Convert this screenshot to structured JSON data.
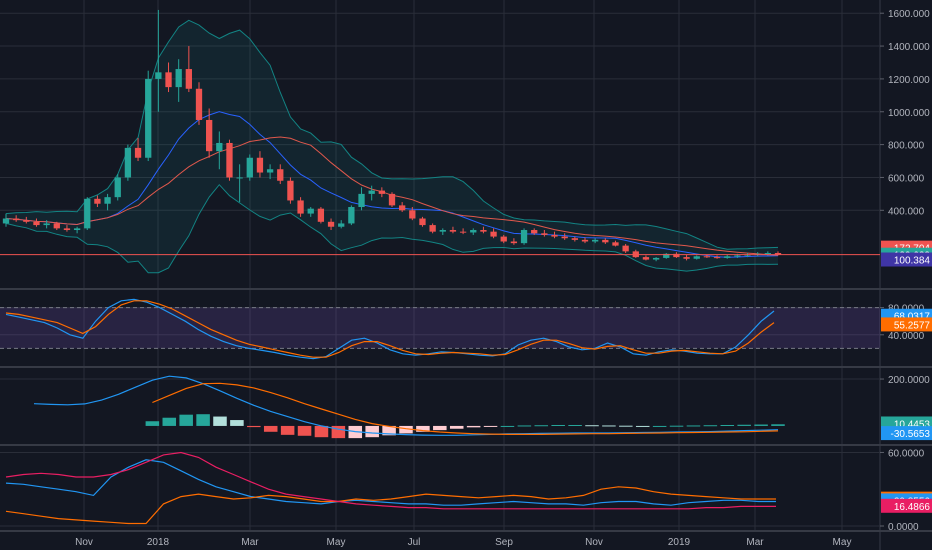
{
  "colors": {
    "background": "#131722",
    "grid": "#2a2e39",
    "axis_text": "#b2b5be",
    "candle_up": "#26a69a",
    "candle_down": "#ef5350",
    "price_line": "#ef5350",
    "bb_line": "#138484",
    "bb_fill": "#13848422",
    "ma_fast": "#2962ff",
    "ma_slow": "#e0584c",
    "stoch_band": "#7e57c233",
    "stoch_k": "#2196f3",
    "stoch_d": "#ff6d00",
    "macd_line": "#2196f3",
    "signal_line": "#ff6d00",
    "hist_up_strong": "#26a69a",
    "hist_up_weak": "#b2dfdb",
    "hist_down_strong": "#ef5350",
    "hist_down_weak": "#ffcdd2",
    "dmi_plus": "#2196f3",
    "dmi_minus": "#ff6d00",
    "adx": "#e91e63"
  },
  "x_axis_labels": [
    "Nov",
    "2018",
    "Mar",
    "May",
    "Jul",
    "Sep",
    "Nov",
    "2019",
    "Mar",
    "May"
  ],
  "chart_data": [
    {
      "type": "candlestick",
      "panel": "price",
      "y_ticks": [
        "1600.000",
        "1400.000",
        "1200.000",
        "1000.000",
        "800.000",
        "600.000",
        "400.000"
      ],
      "ylim": [
        0,
        1650
      ],
      "candles": [
        {
          "o": 320,
          "h": 380,
          "l": 300,
          "c": 350
        },
        {
          "o": 350,
          "h": 370,
          "l": 330,
          "c": 340
        },
        {
          "o": 340,
          "h": 360,
          "l": 320,
          "c": 330
        },
        {
          "o": 330,
          "h": 350,
          "l": 300,
          "c": 310
        },
        {
          "o": 310,
          "h": 340,
          "l": 290,
          "c": 320
        },
        {
          "o": 320,
          "h": 330,
          "l": 280,
          "c": 290
        },
        {
          "o": 290,
          "h": 310,
          "l": 270,
          "c": 280
        },
        {
          "o": 280,
          "h": 300,
          "l": 260,
          "c": 290
        },
        {
          "o": 290,
          "h": 480,
          "l": 280,
          "c": 470
        },
        {
          "o": 470,
          "h": 490,
          "l": 420,
          "c": 440
        },
        {
          "o": 440,
          "h": 500,
          "l": 400,
          "c": 480
        },
        {
          "o": 480,
          "h": 620,
          "l": 460,
          "c": 600
        },
        {
          "o": 600,
          "h": 800,
          "l": 580,
          "c": 780
        },
        {
          "o": 780,
          "h": 840,
          "l": 700,
          "c": 720
        },
        {
          "o": 720,
          "h": 1250,
          "l": 700,
          "c": 1200
        },
        {
          "o": 1200,
          "h": 1620,
          "l": 1000,
          "c": 1240
        },
        {
          "o": 1240,
          "h": 1300,
          "l": 1120,
          "c": 1150
        },
        {
          "o": 1150,
          "h": 1320,
          "l": 1060,
          "c": 1260
        },
        {
          "o": 1260,
          "h": 1400,
          "l": 1120,
          "c": 1140
        },
        {
          "o": 1140,
          "h": 1180,
          "l": 920,
          "c": 950
        },
        {
          "o": 950,
          "h": 1020,
          "l": 720,
          "c": 760
        },
        {
          "o": 760,
          "h": 880,
          "l": 650,
          "c": 810
        },
        {
          "o": 810,
          "h": 830,
          "l": 580,
          "c": 600
        },
        {
          "o": 600,
          "h": 680,
          "l": 450,
          "c": 600
        },
        {
          "o": 600,
          "h": 740,
          "l": 580,
          "c": 720
        },
        {
          "o": 720,
          "h": 760,
          "l": 600,
          "c": 630
        },
        {
          "o": 630,
          "h": 680,
          "l": 590,
          "c": 650
        },
        {
          "o": 650,
          "h": 680,
          "l": 560,
          "c": 580
        },
        {
          "o": 580,
          "h": 600,
          "l": 440,
          "c": 460
        },
        {
          "o": 460,
          "h": 480,
          "l": 360,
          "c": 380
        },
        {
          "o": 380,
          "h": 420,
          "l": 360,
          "c": 410
        },
        {
          "o": 410,
          "h": 420,
          "l": 320,
          "c": 330
        },
        {
          "o": 330,
          "h": 350,
          "l": 280,
          "c": 300
        },
        {
          "o": 300,
          "h": 340,
          "l": 290,
          "c": 320
        },
        {
          "o": 320,
          "h": 430,
          "l": 310,
          "c": 420
        },
        {
          "o": 420,
          "h": 540,
          "l": 400,
          "c": 500
        },
        {
          "o": 500,
          "h": 550,
          "l": 460,
          "c": 520
        },
        {
          "o": 520,
          "h": 540,
          "l": 480,
          "c": 500
        },
        {
          "o": 500,
          "h": 510,
          "l": 420,
          "c": 430
        },
        {
          "o": 430,
          "h": 450,
          "l": 390,
          "c": 400
        },
        {
          "o": 400,
          "h": 420,
          "l": 340,
          "c": 350
        },
        {
          "o": 350,
          "h": 360,
          "l": 300,
          "c": 310
        },
        {
          "o": 310,
          "h": 320,
          "l": 260,
          "c": 270
        },
        {
          "o": 270,
          "h": 290,
          "l": 250,
          "c": 280
        },
        {
          "o": 280,
          "h": 300,
          "l": 260,
          "c": 270
        },
        {
          "o": 270,
          "h": 290,
          "l": 255,
          "c": 265
        },
        {
          "o": 265,
          "h": 290,
          "l": 250,
          "c": 280
        },
        {
          "o": 280,
          "h": 300,
          "l": 260,
          "c": 270
        },
        {
          "o": 270,
          "h": 290,
          "l": 230,
          "c": 240
        },
        {
          "o": 240,
          "h": 250,
          "l": 200,
          "c": 210
        },
        {
          "o": 210,
          "h": 230,
          "l": 190,
          "c": 200
        },
        {
          "o": 200,
          "h": 290,
          "l": 190,
          "c": 280
        },
        {
          "o": 280,
          "h": 290,
          "l": 250,
          "c": 260
        },
        {
          "o": 260,
          "h": 280,
          "l": 240,
          "c": 250
        },
        {
          "o": 250,
          "h": 270,
          "l": 230,
          "c": 240
        },
        {
          "o": 240,
          "h": 260,
          "l": 220,
          "c": 230
        },
        {
          "o": 230,
          "h": 240,
          "l": 210,
          "c": 220
        },
        {
          "o": 220,
          "h": 235,
          "l": 200,
          "c": 210
        },
        {
          "o": 210,
          "h": 230,
          "l": 200,
          "c": 220
        },
        {
          "o": 220,
          "h": 230,
          "l": 195,
          "c": 205
        },
        {
          "o": 205,
          "h": 215,
          "l": 180,
          "c": 185
        },
        {
          "o": 185,
          "h": 195,
          "l": 140,
          "c": 150
        },
        {
          "o": 150,
          "h": 160,
          "l": 110,
          "c": 115
        },
        {
          "o": 115,
          "h": 125,
          "l": 95,
          "c": 100
        },
        {
          "o": 100,
          "h": 115,
          "l": 90,
          "c": 110
        },
        {
          "o": 110,
          "h": 140,
          "l": 105,
          "c": 135
        },
        {
          "o": 135,
          "h": 145,
          "l": 110,
          "c": 115
        },
        {
          "o": 115,
          "h": 130,
          "l": 95,
          "c": 105
        },
        {
          "o": 105,
          "h": 125,
          "l": 100,
          "c": 120
        },
        {
          "o": 120,
          "h": 130,
          "l": 110,
          "c": 115
        },
        {
          "o": 115,
          "h": 125,
          "l": 105,
          "c": 110
        },
        {
          "o": 110,
          "h": 130,
          "l": 105,
          "c": 120
        },
        {
          "o": 120,
          "h": 135,
          "l": 110,
          "c": 125
        },
        {
          "o": 125,
          "h": 140,
          "l": 115,
          "c": 130
        },
        {
          "o": 130,
          "h": 145,
          "l": 120,
          "c": 135
        },
        {
          "o": 135,
          "h": 150,
          "l": 125,
          "c": 140
        },
        {
          "o": 140,
          "h": 150,
          "l": 125,
          "c": 130
        }
      ],
      "price_markers": [
        {
          "value": "172.704",
          "color": "#ef5350",
          "level": 172.704
        },
        {
          "value": "129.623",
          "color": "#26a69a",
          "level": 129.623
        },
        {
          "value": "100.384",
          "color": "#3f35a6",
          "level": 100.384
        }
      ]
    },
    {
      "type": "line",
      "panel": "stochastic",
      "y_ticks": [
        "80.0000",
        "40.0000"
      ],
      "ylim": [
        0,
        100
      ],
      "band": [
        20,
        80
      ],
      "series": [
        {
          "values": [
            70,
            66,
            62,
            58,
            50,
            40,
            35,
            60,
            80,
            90,
            92,
            88,
            80,
            70,
            60,
            48,
            38,
            30,
            24,
            20,
            17,
            14,
            10,
            7,
            5,
            8,
            20,
            32,
            35,
            28,
            18,
            12,
            10,
            12,
            15,
            14,
            12,
            10,
            9,
            12,
            25,
            32,
            35,
            30,
            22,
            18,
            20,
            28,
            22,
            12,
            10,
            15,
            18,
            16,
            13,
            12,
            12,
            22,
            40,
            60,
            75
          ]
        },
        {
          "values": [
            72,
            70,
            66,
            62,
            58,
            50,
            42,
            52,
            70,
            84,
            90,
            90,
            85,
            78,
            68,
            58,
            48,
            40,
            32,
            26,
            22,
            18,
            14,
            10,
            7,
            7,
            14,
            24,
            30,
            30,
            24,
            17,
            12,
            11,
            13,
            14,
            13,
            12,
            10,
            11,
            18,
            26,
            32,
            32,
            27,
            21,
            19,
            23,
            24,
            18,
            13,
            13,
            16,
            17,
            15,
            13,
            12,
            16,
            28,
            44,
            58
          ]
        }
      ],
      "markers": [
        {
          "value": "68.0317",
          "color": "#2196f3",
          "level": 68.0317
        },
        {
          "value": "55.2577",
          "color": "#ff6d00",
          "level": 55.2577
        }
      ]
    },
    {
      "type": "line",
      "panel": "macd",
      "y_ticks": [
        "200.0000"
      ],
      "ylim": [
        -60,
        230
      ],
      "series": [
        {
          "values": [
            95,
            92,
            90,
            94,
            110,
            135,
            165,
            195,
            212,
            205,
            180,
            150,
            118,
            88,
            62,
            40,
            18,
            0,
            -14,
            -24,
            -30,
            -34,
            -37,
            -39,
            -40,
            -40,
            -38,
            -36,
            -34,
            -33,
            -32,
            -31,
            -30,
            -30,
            -30,
            -29,
            -28,
            -27,
            -26,
            -25,
            -24,
            -22,
            -20,
            -18,
            -16
          ]
        },
        {
          "values": [
            null,
            null,
            null,
            null,
            null,
            null,
            null,
            100,
            130,
            160,
            180,
            182,
            175,
            162,
            142,
            120,
            95,
            72,
            50,
            28,
            10,
            -2,
            -12,
            -20,
            -26,
            -30,
            -33,
            -35,
            -36,
            -36,
            -36,
            -35,
            -34,
            -33,
            -33,
            -32,
            -31,
            -30,
            -29,
            -28,
            -27,
            -26,
            -25,
            -23,
            -21
          ]
        }
      ],
      "histogram": [
        null,
        null,
        null,
        null,
        null,
        null,
        null,
        20,
        35,
        48,
        50,
        40,
        25,
        -5,
        -25,
        -38,
        -42,
        -48,
        -52,
        -52,
        -48,
        -40,
        -32,
        -25,
        -18,
        -12,
        -6,
        -3,
        0,
        2,
        3,
        4,
        4,
        3,
        2,
        1,
        0,
        0,
        1,
        2,
        3,
        4,
        5,
        6,
        7
      ],
      "markers": [
        {
          "value": "10.4453",
          "color": "#26a69a",
          "level": 10.4453
        },
        {
          "value": "-30.5653",
          "color": "#2196f3",
          "level": -30.5653
        }
      ]
    },
    {
      "type": "line",
      "panel": "dmi",
      "y_ticks": [
        "60.0000",
        "0.0000"
      ],
      "ylim": [
        0,
        62
      ],
      "series": [
        {
          "values": [
            35,
            34,
            32,
            30,
            28,
            25,
            40,
            48,
            54,
            52,
            45,
            38,
            32,
            28,
            24,
            22,
            20,
            19,
            18,
            20,
            21,
            20,
            19,
            18,
            18,
            17,
            17,
            18,
            19,
            20,
            19,
            18,
            18,
            17,
            19,
            20,
            20,
            18,
            17,
            19,
            20,
            21,
            21,
            20,
            20
          ]
        },
        {
          "values": [
            12,
            10,
            8,
            6,
            5,
            4,
            3,
            2,
            2,
            18,
            24,
            26,
            24,
            22,
            23,
            25,
            24,
            22,
            20,
            20,
            22,
            21,
            22,
            24,
            26,
            25,
            24,
            23,
            24,
            25,
            24,
            22,
            23,
            25,
            30,
            32,
            31,
            28,
            26,
            25,
            24,
            23,
            22,
            22,
            22
          ]
        },
        {
          "values": [
            40,
            42,
            43,
            42,
            40,
            40,
            42,
            46,
            52,
            58,
            60,
            56,
            48,
            42,
            36,
            30,
            26,
            24,
            22,
            20,
            18,
            17,
            16,
            15,
            15,
            14,
            14,
            14,
            14,
            14,
            14,
            14,
            14,
            14,
            14,
            14,
            14,
            14,
            14,
            14,
            15,
            15,
            16,
            16,
            16
          ]
        }
      ],
      "markers": [
        {
          "value": "22.3120",
          "color": "#ff6d00",
          "level": 22.312
        },
        {
          "value": "20.8556",
          "color": "#2196f3",
          "level": 20.8556
        },
        {
          "value": "16.4866",
          "color": "#e91e63",
          "level": 16.4866
        }
      ]
    }
  ]
}
